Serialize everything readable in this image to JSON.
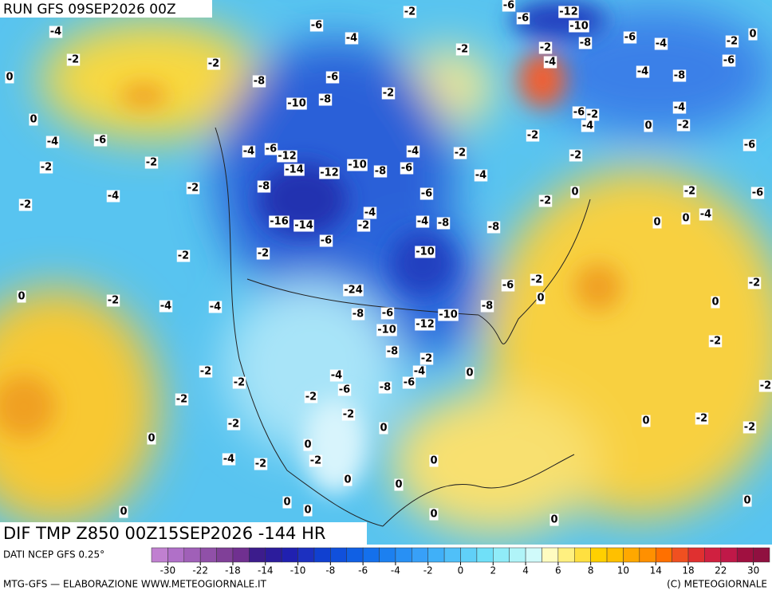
{
  "header": {
    "run": "RUN GFS 09SEP2026 00Z"
  },
  "map_title": "DIF TMP Z850 00Z15SEP2026 -144 HR",
  "footer": {
    "source": "DATI NCEP GFS 0.25°",
    "credit": "MTG-GFS — ELABORAZIONE WWW.METEOGIORNALE.IT",
    "copyright": "(C) METEOGIORNALE"
  },
  "colorbar": {
    "ticks": [
      -30,
      -22,
      -18,
      -14,
      -10,
      -8,
      -6,
      -4,
      -2,
      0,
      2,
      4,
      6,
      8,
      10,
      14,
      18,
      22,
      30
    ],
    "colors": [
      "#c080d0",
      "#b070c8",
      "#a060b8",
      "#9050a8",
      "#804098",
      "#703090",
      "#3c1c8c",
      "#2c1c9c",
      "#2020b0",
      "#1c30c0",
      "#1040d0",
      "#1050dc",
      "#1060e4",
      "#1470ec",
      "#1c80f0",
      "#2890f4",
      "#38a0f8",
      "#40b0f8",
      "#50c0f8",
      "#60d0f8",
      "#70e0f8",
      "#90ecf8",
      "#b0f4f8",
      "#d0fafa",
      "#fffcc0",
      "#fff080",
      "#ffe040",
      "#ffd000",
      "#ffc000",
      "#ffa800",
      "#ff9000",
      "#ff7000",
      "#f05020",
      "#e03030",
      "#d02040",
      "#c01848",
      "#a01040",
      "#901040"
    ]
  },
  "contour_labels": [
    -4,
    -2,
    0,
    0,
    -4,
    -6,
    -2,
    -2,
    -4,
    -2,
    -2,
    -2,
    0,
    -2,
    -4,
    -4,
    -2,
    -2,
    -2,
    -2,
    0,
    -4,
    0,
    -6,
    -4,
    -2,
    -2,
    -8,
    -6,
    -10,
    -8,
    -2,
    -4,
    -6,
    -12,
    -14,
    -12,
    -10,
    -8,
    -6,
    -4,
    -8,
    -16,
    -14,
    -6,
    -2,
    -4,
    -2,
    -4,
    -8,
    -6,
    -8,
    -10,
    -24,
    -8,
    -6,
    -10,
    -12,
    -10,
    -8,
    -6,
    -2,
    -8,
    -2,
    -4,
    -6,
    -8,
    -4,
    -6,
    -2,
    -2,
    0,
    0,
    0,
    -2,
    -2,
    0,
    0,
    0,
    0,
    0,
    0,
    0,
    -2,
    -2,
    -4,
    -6,
    -6,
    -12,
    -10,
    -8,
    -2,
    -4,
    -6,
    -4,
    -2,
    0,
    -6,
    -4,
    -8,
    -6,
    -2,
    -4,
    -4,
    -2,
    0,
    -2,
    -2,
    -6,
    -2,
    0,
    -2,
    -6,
    0,
    0,
    -4,
    -2,
    0,
    0,
    -2,
    -2,
    -2,
    -2,
    0,
    0
  ]
}
